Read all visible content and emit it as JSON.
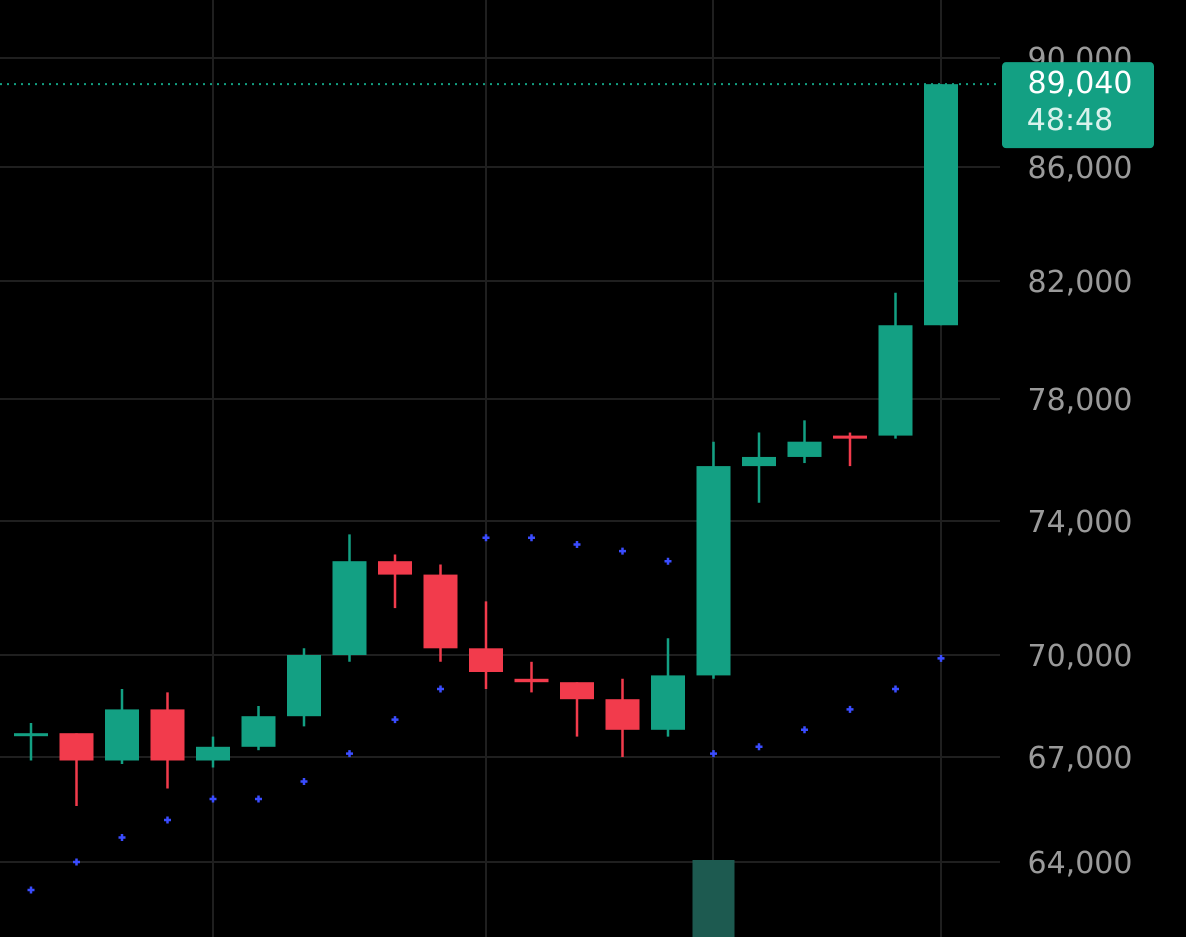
{
  "chart_data": {
    "type": "candlestick",
    "y_ticks": [
      64000,
      67000,
      70000,
      74000,
      78000,
      82000,
      86000,
      90000
    ],
    "y_tick_labels": [
      "64,000",
      "67,000",
      "70,000",
      "74,000",
      "78,000",
      "82,000",
      "86,000",
      "90,000"
    ],
    "colors": {
      "up": "#13a083",
      "down": "#f23b4c",
      "psar": "#3a4cff",
      "grid": "#1f1f1f",
      "background": "#000000",
      "volume": "#1d5a50"
    },
    "candles": [
      {
        "o": 67700,
        "h": 68000,
        "l": 66900,
        "c": 67700
      },
      {
        "o": 67700,
        "h": 67700,
        "l": 65600,
        "c": 66900
      },
      {
        "o": 66900,
        "h": 69000,
        "l": 66800,
        "c": 68400
      },
      {
        "o": 68400,
        "h": 68900,
        "l": 66100,
        "c": 66900
      },
      {
        "o": 66900,
        "h": 67600,
        "l": 66700,
        "c": 67300
      },
      {
        "o": 67300,
        "h": 68500,
        "l": 67200,
        "c": 68200
      },
      {
        "o": 68200,
        "h": 70200,
        "l": 67900,
        "c": 70000
      },
      {
        "o": 70000,
        "h": 73600,
        "l": 69800,
        "c": 72800
      },
      {
        "o": 72800,
        "h": 73000,
        "l": 71400,
        "c": 72400
      },
      {
        "o": 72400,
        "h": 72700,
        "l": 69800,
        "c": 70200
      },
      {
        "o": 70200,
        "h": 71600,
        "l": 69000,
        "c": 69500
      },
      {
        "o": 69300,
        "h": 69800,
        "l": 68900,
        "c": 69200
      },
      {
        "o": 69200,
        "h": 69200,
        "l": 67600,
        "c": 68700
      },
      {
        "o": 68700,
        "h": 69300,
        "l": 67000,
        "c": 67800
      },
      {
        "o": 67800,
        "h": 70500,
        "l": 67600,
        "c": 69400
      },
      {
        "o": 69400,
        "h": 76600,
        "l": 69300,
        "c": 75800
      },
      {
        "o": 75800,
        "h": 76900,
        "l": 74600,
        "c": 76100
      },
      {
        "o": 76100,
        "h": 77300,
        "l": 75900,
        "c": 76600
      },
      {
        "o": 76800,
        "h": 76900,
        "l": 75800,
        "c": 76700
      },
      {
        "o": 76800,
        "h": 81600,
        "l": 76700,
        "c": 80500
      },
      {
        "o": 80500,
        "h": 89040,
        "l": 80500,
        "c": 89040
      }
    ],
    "psar": [
      63200,
      64000,
      64700,
      65200,
      65800,
      65800,
      66300,
      67100,
      68100,
      69000,
      73500,
      73500,
      73300,
      73100,
      72800,
      67100,
      67300,
      67800,
      68400,
      69000,
      69900
    ],
    "volume_bar": {
      "index": 15,
      "visible": true
    },
    "last_price": {
      "value": 89040,
      "label": "89,040",
      "countdown": "48:48"
    }
  }
}
